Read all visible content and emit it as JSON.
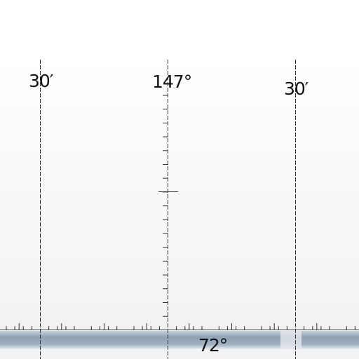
{
  "map": {
    "colors": {
      "sky": "#ffffff",
      "sheet": "#f4f4f6",
      "water_band_dark": "#8ea0b4",
      "water_band_light": "#e8ecf0",
      "grid_line": "#333333"
    },
    "meridian_labels": {
      "left": "30′",
      "center": "147°",
      "right": "30′"
    },
    "parallel_label": "72°"
  }
}
